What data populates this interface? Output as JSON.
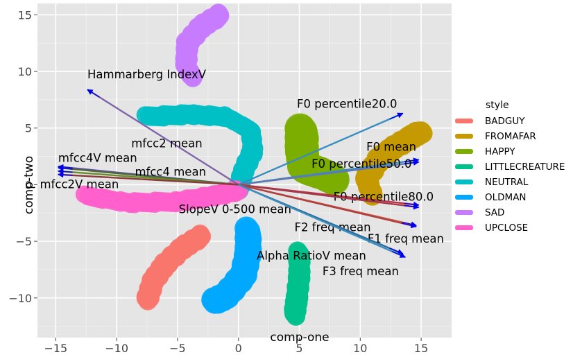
{
  "chart_data": {
    "type": "scatter",
    "title": "",
    "xlabel": "comp-one",
    "ylabel": "comp-two",
    "xlim": [
      -16.5,
      17.5
    ],
    "ylim": [
      -13.5,
      16
    ],
    "xticks": [
      -15,
      -10,
      -5,
      0,
      5,
      10,
      15
    ],
    "yticks": [
      -10,
      -5,
      0,
      5,
      10,
      15
    ],
    "xtick_labels": [
      "−15",
      "−10",
      "−5",
      "0",
      "5",
      "10",
      "15"
    ],
    "ytick_labels": [
      "−10",
      "−5",
      "0",
      "5",
      "10",
      "15"
    ],
    "grid": true,
    "background": "#e5e5e5",
    "legend": {
      "title": "style",
      "position": "right",
      "entries": [
        {
          "label": "BADGUY",
          "color": "#f8766d"
        },
        {
          "label": "FROMAFAR",
          "color": "#c49a00"
        },
        {
          "label": "HAPPY",
          "color": "#7cae00"
        },
        {
          "label": "LITTLECREATURE",
          "color": "#00c08b"
        },
        {
          "label": "NEUTRAL",
          "color": "#00bfc4"
        },
        {
          "label": "OLDMAN",
          "color": "#00a9ff"
        },
        {
          "label": "SAD",
          "color": "#c77cff"
        },
        {
          "label": "UPCLOSE",
          "color": "#ff61cc"
        }
      ]
    },
    "series": [
      {
        "name": "BADGUY",
        "color": "#f8766d",
        "path": [
          [
            -3,
            -4.5
          ],
          [
            -4.5,
            -5.5
          ],
          [
            -6,
            -7
          ],
          [
            -7,
            -8.5
          ],
          [
            -7.5,
            -10.2
          ]
        ],
        "thickness": 1.6
      },
      {
        "name": "FROMAFAR",
        "color": "#c49a00",
        "path": [
          [
            11,
            -1
          ],
          [
            10.5,
            0.5
          ],
          [
            11.5,
            2.2
          ],
          [
            12.8,
            3.3
          ],
          [
            14.2,
            4.2
          ],
          [
            15,
            4.7
          ]
        ],
        "thickness": 1.7
      },
      {
        "name": "HAPPY",
        "color": "#7cae00",
        "path": [
          [
            5.2,
            4.8
          ],
          [
            5.2,
            3
          ],
          [
            5.4,
            1.5
          ],
          [
            6.8,
            1
          ],
          [
            7.8,
            0.5
          ]
        ],
        "thickness": 2.6
      },
      {
        "name": "LITTLECREATURE",
        "color": "#00c08b",
        "path": [
          [
            5,
            -6
          ],
          [
            5,
            -8
          ],
          [
            4.8,
            -10
          ],
          [
            4.6,
            -11.5
          ]
        ],
        "thickness": 1.6
      },
      {
        "name": "NEUTRAL",
        "color": "#00bfc4",
        "path": [
          [
            -7.5,
            6
          ],
          [
            -4,
            6.2
          ],
          [
            -1,
            6
          ],
          [
            1,
            4.8
          ],
          [
            1.2,
            3
          ],
          [
            0.4,
            1.2
          ],
          [
            0,
            -0.5
          ]
        ],
        "thickness": 1.5
      },
      {
        "name": "OLDMAN",
        "color": "#00a9ff",
        "path": [
          [
            0.8,
            -4
          ],
          [
            0.8,
            -6
          ],
          [
            0.4,
            -8
          ],
          [
            -1,
            -9.8
          ],
          [
            -2,
            -10.3
          ]
        ],
        "thickness": 2.0
      },
      {
        "name": "SAD",
        "color": "#c77cff",
        "path": [
          [
            -1.5,
            15
          ],
          [
            -3,
            14
          ],
          [
            -4.2,
            12.5
          ],
          [
            -4.3,
            10.5
          ],
          [
            -3.8,
            9.5
          ]
        ],
        "thickness": 1.6
      },
      {
        "name": "UPCLOSE",
        "color": "#ff61cc",
        "path": [
          [
            -12.5,
            -1
          ],
          [
            -9,
            -1.6
          ],
          [
            -5,
            -1.5
          ],
          [
            -2,
            -1
          ],
          [
            0,
            -0.5
          ]
        ],
        "thickness": 1.5
      }
    ],
    "loadings": [
      {
        "label": "Hammarberg IndexV",
        "x": -12.4,
        "y": 8.4,
        "color": "#8064a8",
        "label_x": -12.4,
        "label_y": 9.4,
        "anchor": "start"
      },
      {
        "label": "F0 percentile20.0",
        "x": 13.5,
        "y": 6.3,
        "color": "#3a8dbf",
        "label_x": 4.8,
        "label_y": 6.8,
        "anchor": "start"
      },
      {
        "label": "F0 mean",
        "x": 14.8,
        "y": 2.2,
        "color": "#3a8dbf",
        "label_x": 10.5,
        "label_y": 3.0,
        "anchor": "start"
      },
      {
        "label": "F0 percentile50.0",
        "x": 14.8,
        "y": 2.0,
        "color": "#607ab0",
        "label_x": 6.0,
        "label_y": 1.5,
        "anchor": "start"
      },
      {
        "label": "mfcc2 mean",
        "x": -14.8,
        "y": 1.6,
        "color": "#6a4aa8",
        "label_x": -8.8,
        "label_y": 3.3,
        "anchor": "start"
      },
      {
        "label": "mfcc4V mean",
        "x": -14.8,
        "y": 1.5,
        "color": "#4a6a3a",
        "label_x": -14.8,
        "label_y": 2.0,
        "anchor": "start"
      },
      {
        "label": "mfcc4 mean",
        "x": -14.8,
        "y": 1.2,
        "color": "#6a8a2a",
        "label_x": -8.5,
        "label_y": 0.8,
        "anchor": "start"
      },
      {
        "label": "mfcc2V mean",
        "x": -14.8,
        "y": 0.9,
        "color": "#8a3a3a",
        "label_x": -16.3,
        "label_y": -0.3,
        "anchor": "start"
      },
      {
        "label": "F0 percentile80.0",
        "x": 14.8,
        "y": -1.8,
        "color": "#c0304a",
        "label_x": 7.8,
        "label_y": -1.4,
        "anchor": "start"
      },
      {
        "label": "SlopeV 0-500 mean",
        "x": 14.8,
        "y": -2.0,
        "color": "#a03a48",
        "label_x": -4.9,
        "label_y": -2.5,
        "anchor": "start"
      },
      {
        "label": "F2 freq mean",
        "x": 14.6,
        "y": -3.6,
        "color": "#c85a4a",
        "label_x": 4.6,
        "label_y": -4.1,
        "anchor": "start"
      },
      {
        "label": "F1 freq mean",
        "x": 14.6,
        "y": -3.7,
        "color": "#b04040",
        "label_x": 10.6,
        "label_y": -5.1,
        "anchor": "start"
      },
      {
        "label": "Alpha RatioV mean",
        "x": 13.5,
        "y": -6.1,
        "color": "#2a6a9a",
        "label_x": 1.5,
        "label_y": -6.6,
        "anchor": "start"
      },
      {
        "label": "F3 freq mean",
        "x": 13.7,
        "y": -6.4,
        "color": "#3a8dbf",
        "label_x": 6.9,
        "label_y": -8.0,
        "anchor": "start"
      }
    ]
  }
}
